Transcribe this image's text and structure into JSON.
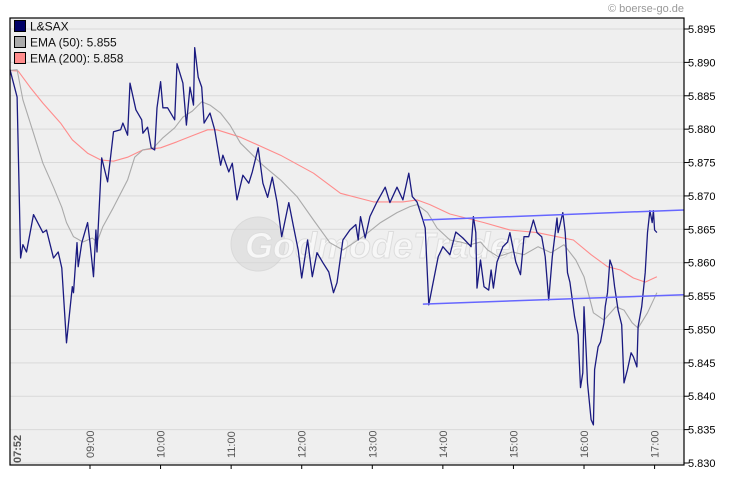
{
  "credit": "© boerse-go.de",
  "watermark": "GodmodeTrader",
  "legend": [
    {
      "label": "L&SAX",
      "color": "#000066"
    },
    {
      "label": "EMA (50): 5.855",
      "color": "#aaaaaa"
    },
    {
      "label": "EMA (200): 5.858",
      "color": "#ff8c8c"
    }
  ],
  "chart_data": {
    "type": "line",
    "xlim": [
      "07:52",
      "17:25"
    ],
    "ylim": [
      5.83,
      5.895
    ],
    "y_ticks": [
      "5.830",
      "5.835",
      "5.840",
      "5.845",
      "5.850",
      "5.855",
      "5.860",
      "5.865",
      "5.870",
      "5.875",
      "5.880",
      "5.885",
      "5.890",
      "5.895"
    ],
    "x_ticks": [
      {
        "t": "07:52",
        "label": "07:52",
        "bold": true
      },
      {
        "t": "09:00",
        "label": "09:00"
      },
      {
        "t": "10:00",
        "label": "10:00"
      },
      {
        "t": "11:00",
        "label": "11:00"
      },
      {
        "t": "12:00",
        "label": "12:00"
      },
      {
        "t": "13:00",
        "label": "13:00"
      },
      {
        "t": "14:00",
        "label": "14:00"
      },
      {
        "t": "15:00",
        "label": "15:00"
      },
      {
        "t": "16:00",
        "label": "16:00"
      },
      {
        "t": "17:00",
        "label": "17:00"
      }
    ],
    "grid": "horizontal",
    "legend_position": "top-left",
    "y_axis_side": "right",
    "series": [
      {
        "name": "L&SAX",
        "color": "#1a1a80",
        "points": [
          [
            "07:52",
            5.8889
          ],
          [
            "07:58",
            5.8848
          ],
          [
            "08:01",
            5.8607
          ],
          [
            "08:03",
            5.8627
          ],
          [
            "08:06",
            5.8616
          ],
          [
            "08:12",
            5.8672
          ],
          [
            "08:20",
            5.8645
          ],
          [
            "08:23",
            5.8649
          ],
          [
            "08:29",
            5.8607
          ],
          [
            "08:33",
            5.8616
          ],
          [
            "08:36",
            5.8592
          ],
          [
            "08:40",
            5.848
          ],
          [
            "08:45",
            5.8564
          ],
          [
            "08:46",
            5.8555
          ],
          [
            "08:49",
            5.863
          ],
          [
            "08:50",
            5.8594
          ],
          [
            "08:53",
            5.863
          ],
          [
            "08:58",
            5.866
          ],
          [
            "09:00",
            5.863
          ],
          [
            "09:03",
            5.8579
          ],
          [
            "09:05",
            5.8649
          ],
          [
            "09:06",
            5.8616
          ],
          [
            "09:10",
            5.8757
          ],
          [
            "09:15",
            5.8721
          ],
          [
            "09:17",
            5.8751
          ],
          [
            "09:20",
            5.8796
          ],
          [
            "09:26",
            5.8799
          ],
          [
            "09:28",
            5.8809
          ],
          [
            "09:32",
            5.8791
          ],
          [
            "09:34",
            5.8869
          ],
          [
            "09:39",
            5.8829
          ],
          [
            "09:44",
            5.8814
          ],
          [
            "09:45",
            5.8794
          ],
          [
            "09:49",
            5.8803
          ],
          [
            "09:52",
            5.8772
          ],
          [
            "09:55",
            5.8769
          ],
          [
            "09:57",
            5.8832
          ],
          [
            "10:00",
            5.8871
          ],
          [
            "10:02",
            5.8832
          ],
          [
            "10:06",
            5.8832
          ],
          [
            "10:12",
            5.8814
          ],
          [
            "10:14",
            5.8898
          ],
          [
            "10:19",
            5.8869
          ],
          [
            "10:22",
            5.8806
          ],
          [
            "10:25",
            5.8863
          ],
          [
            "10:28",
            5.8836
          ],
          [
            "10:29",
            5.8922
          ],
          [
            "10:32",
            5.8878
          ],
          [
            "10:35",
            5.8863
          ],
          [
            "10:37",
            5.8809
          ],
          [
            "10:42",
            5.8824
          ],
          [
            "10:46",
            5.8799
          ],
          [
            "10:51",
            5.8746
          ],
          [
            "10:53",
            5.8761
          ],
          [
            "10:58",
            5.8736
          ],
          [
            "11:01",
            5.8749
          ],
          [
            "11:05",
            5.8694
          ],
          [
            "11:10",
            5.8731
          ],
          [
            "11:15",
            5.8719
          ],
          [
            "11:18",
            5.8736
          ],
          [
            "11:23",
            5.8772
          ],
          [
            "11:27",
            5.8719
          ],
          [
            "11:31",
            5.8698
          ],
          [
            "11:35",
            5.8728
          ],
          [
            "11:39",
            5.8691
          ],
          [
            "11:43",
            5.8639
          ],
          [
            "11:49",
            5.869
          ],
          [
            "11:53",
            5.8654
          ],
          [
            "11:57",
            5.8619
          ],
          [
            "12:00",
            5.8577
          ],
          [
            "12:05",
            5.8634
          ],
          [
            "12:09",
            5.8579
          ],
          [
            "12:13",
            5.8615
          ],
          [
            "12:18",
            5.86
          ],
          [
            "12:23",
            5.8586
          ],
          [
            "12:27",
            5.8555
          ],
          [
            "12:30",
            5.857
          ],
          [
            "12:35",
            5.8634
          ],
          [
            "12:41",
            5.8649
          ],
          [
            "12:46",
            5.8657
          ],
          [
            "12:48",
            5.8634
          ],
          [
            "12:50",
            5.8669
          ],
          [
            "12:54",
            5.8637
          ],
          [
            "12:58",
            5.8669
          ],
          [
            "13:04",
            5.8691
          ],
          [
            "13:11",
            5.8713
          ],
          [
            "13:15",
            5.869
          ],
          [
            "13:21",
            5.8713
          ],
          [
            "13:26",
            5.8694
          ],
          [
            "13:31",
            5.8734
          ],
          [
            "13:34",
            5.8699
          ],
          [
            "13:38",
            5.8691
          ],
          [
            "13:43",
            5.8664
          ],
          [
            "13:45",
            5.8652
          ],
          [
            "13:48",
            5.8537
          ],
          [
            "13:51",
            5.8564
          ],
          [
            "13:56",
            5.8609
          ],
          [
            "14:00",
            5.8624
          ],
          [
            "14:06",
            5.8612
          ],
          [
            "14:11",
            5.8646
          ],
          [
            "14:17",
            5.8637
          ],
          [
            "14:24",
            5.8624
          ],
          [
            "14:26",
            5.8669
          ],
          [
            "14:28",
            5.8645
          ],
          [
            "14:29",
            5.8562
          ],
          [
            "14:32",
            5.8604
          ],
          [
            "14:35",
            5.8564
          ],
          [
            "14:39",
            5.8559
          ],
          [
            "14:41",
            5.8589
          ],
          [
            "14:43",
            5.8562
          ],
          [
            "14:46",
            5.8601
          ],
          [
            "14:51",
            5.8624
          ],
          [
            "14:55",
            5.8631
          ],
          [
            "14:57",
            5.8645
          ],
          [
            "15:02",
            5.8601
          ],
          [
            "15:06",
            5.8582
          ],
          [
            "15:09",
            5.8639
          ],
          [
            "15:13",
            5.8639
          ],
          [
            "15:17",
            5.8664
          ],
          [
            "15:20",
            5.8645
          ],
          [
            "15:24",
            5.8639
          ],
          [
            "15:27",
            5.8609
          ],
          [
            "15:30",
            5.8544
          ],
          [
            "15:33",
            5.8609
          ],
          [
            "15:37",
            5.8667
          ],
          [
            "15:38",
            5.8645
          ],
          [
            "15:42",
            5.8675
          ],
          [
            "15:44",
            5.8645
          ],
          [
            "15:46",
            5.8585
          ],
          [
            "15:48",
            5.8571
          ],
          [
            "15:52",
            5.8519
          ],
          [
            "15:55",
            5.8492
          ],
          [
            "15:57",
            5.8413
          ],
          [
            "15:59",
            5.8435
          ],
          [
            "16:00",
            5.8534
          ],
          [
            "16:02",
            5.8459
          ],
          [
            "16:03",
            5.842
          ],
          [
            "16:06",
            5.8365
          ],
          [
            "16:08",
            5.8357
          ],
          [
            "16:09",
            5.844
          ],
          [
            "16:12",
            5.8474
          ],
          [
            "16:14",
            5.8481
          ],
          [
            "16:17",
            5.851
          ],
          [
            "16:18",
            5.8534
          ],
          [
            "16:20",
            5.8555
          ],
          [
            "16:22",
            5.8604
          ],
          [
            "16:24",
            5.8594
          ],
          [
            "16:26",
            5.8564
          ],
          [
            "16:29",
            5.8529
          ],
          [
            "16:32",
            5.8507
          ],
          [
            "16:34",
            5.842
          ],
          [
            "16:37",
            5.844
          ],
          [
            "16:40",
            5.8465
          ],
          [
            "16:42",
            5.8459
          ],
          [
            "16:45",
            5.8444
          ],
          [
            "16:46",
            5.8504
          ],
          [
            "16:49",
            5.8534
          ],
          [
            "16:52",
            5.8585
          ],
          [
            "16:54",
            5.8645
          ],
          [
            "16:56",
            5.8678
          ],
          [
            "16:58",
            5.866
          ],
          [
            "16:59",
            5.8678
          ],
          [
            "17:00",
            5.8649
          ],
          [
            "17:02",
            5.8645
          ]
        ]
      },
      {
        "name": "EMA (50)",
        "color": "#aaaaaa",
        "points": [
          [
            "07:52",
            5.8888
          ],
          [
            "07:58",
            5.8889
          ],
          [
            "08:03",
            5.8844
          ],
          [
            "08:12",
            5.8794
          ],
          [
            "08:20",
            5.8749
          ],
          [
            "08:29",
            5.8713
          ],
          [
            "08:36",
            5.8683
          ],
          [
            "08:40",
            5.866
          ],
          [
            "08:46",
            5.8639
          ],
          [
            "08:54",
            5.8631
          ],
          [
            "09:02",
            5.8637
          ],
          [
            "09:06",
            5.8631
          ],
          [
            "09:11",
            5.8654
          ],
          [
            "09:20",
            5.8683
          ],
          [
            "09:32",
            5.8724
          ],
          [
            "09:38",
            5.8758
          ],
          [
            "09:45",
            5.8769
          ],
          [
            "09:54",
            5.8772
          ],
          [
            "10:02",
            5.8787
          ],
          [
            "10:12",
            5.8802
          ],
          [
            "10:19",
            5.8818
          ],
          [
            "10:27",
            5.8827
          ],
          [
            "10:35",
            5.8841
          ],
          [
            "10:42",
            5.8836
          ],
          [
            "10:51",
            5.8824
          ],
          [
            "10:59",
            5.8806
          ],
          [
            "11:08",
            5.8779
          ],
          [
            "11:27",
            5.8746
          ],
          [
            "11:42",
            5.8724
          ],
          [
            "11:56",
            5.8699
          ],
          [
            "12:10",
            5.8664
          ],
          [
            "12:24",
            5.863
          ],
          [
            "12:35",
            5.8619
          ],
          [
            "12:52",
            5.8639
          ],
          [
            "13:07",
            5.866
          ],
          [
            "13:21",
            5.8675
          ],
          [
            "13:32",
            5.8684
          ],
          [
            "13:38",
            5.8687
          ],
          [
            "13:47",
            5.8675
          ],
          [
            "13:55",
            5.8652
          ],
          [
            "14:06",
            5.8634
          ],
          [
            "14:15",
            5.8631
          ],
          [
            "14:23",
            5.8627
          ],
          [
            "14:32",
            5.8631
          ],
          [
            "14:38",
            5.8619
          ],
          [
            "14:47",
            5.8609
          ],
          [
            "14:59",
            5.8616
          ],
          [
            "15:09",
            5.8612
          ],
          [
            "15:21",
            5.8624
          ],
          [
            "15:32",
            5.8615
          ],
          [
            "15:43",
            5.8627
          ],
          [
            "15:53",
            5.8604
          ],
          [
            "16:00",
            5.8579
          ],
          [
            "16:08",
            5.8525
          ],
          [
            "16:17",
            5.8514
          ],
          [
            "16:27",
            5.8534
          ],
          [
            "16:34",
            5.8529
          ],
          [
            "16:41",
            5.851
          ],
          [
            "16:46",
            5.8502
          ],
          [
            "16:54",
            5.8525
          ],
          [
            "17:02",
            5.8555
          ]
        ]
      },
      {
        "name": "EMA (200)",
        "color": "#ff8c8c",
        "points": [
          [
            "07:52",
            5.8888
          ],
          [
            "07:59",
            5.8887
          ],
          [
            "08:09",
            5.8863
          ],
          [
            "08:20",
            5.8839
          ],
          [
            "08:35",
            5.8809
          ],
          [
            "08:45",
            5.8784
          ],
          [
            "08:58",
            5.8764
          ],
          [
            "09:09",
            5.8754
          ],
          [
            "09:20",
            5.8752
          ],
          [
            "09:32",
            5.8758
          ],
          [
            "09:45",
            5.8769
          ],
          [
            "10:00",
            5.8772
          ],
          [
            "10:14",
            5.8781
          ],
          [
            "10:28",
            5.8791
          ],
          [
            "10:40",
            5.8799
          ],
          [
            "10:48",
            5.8799
          ],
          [
            "11:08",
            5.8788
          ],
          [
            "11:42",
            5.8761
          ],
          [
            "12:10",
            5.8734
          ],
          [
            "12:33",
            5.8704
          ],
          [
            "13:01",
            5.8691
          ],
          [
            "13:26",
            5.8691
          ],
          [
            "13:38",
            5.8694
          ],
          [
            "13:49",
            5.8687
          ],
          [
            "14:06",
            5.8673
          ],
          [
            "14:35",
            5.866
          ],
          [
            "14:57",
            5.8649
          ],
          [
            "15:20",
            5.8645
          ],
          [
            "15:37",
            5.8639
          ],
          [
            "15:51",
            5.8634
          ],
          [
            "16:06",
            5.8612
          ],
          [
            "16:20",
            5.8594
          ],
          [
            "16:31",
            5.8589
          ],
          [
            "16:42",
            5.8577
          ],
          [
            "16:52",
            5.8571
          ],
          [
            "17:02",
            5.8579
          ]
        ]
      }
    ],
    "trendlines": [
      {
        "color": "#6666ff",
        "from": [
          "13:43",
          5.8664
        ],
        "to": [
          "17:25",
          5.8679
        ]
      },
      {
        "color": "#6666ff",
        "from": [
          "13:43",
          5.8538
        ],
        "to": [
          "17:25",
          5.8552
        ]
      }
    ]
  }
}
